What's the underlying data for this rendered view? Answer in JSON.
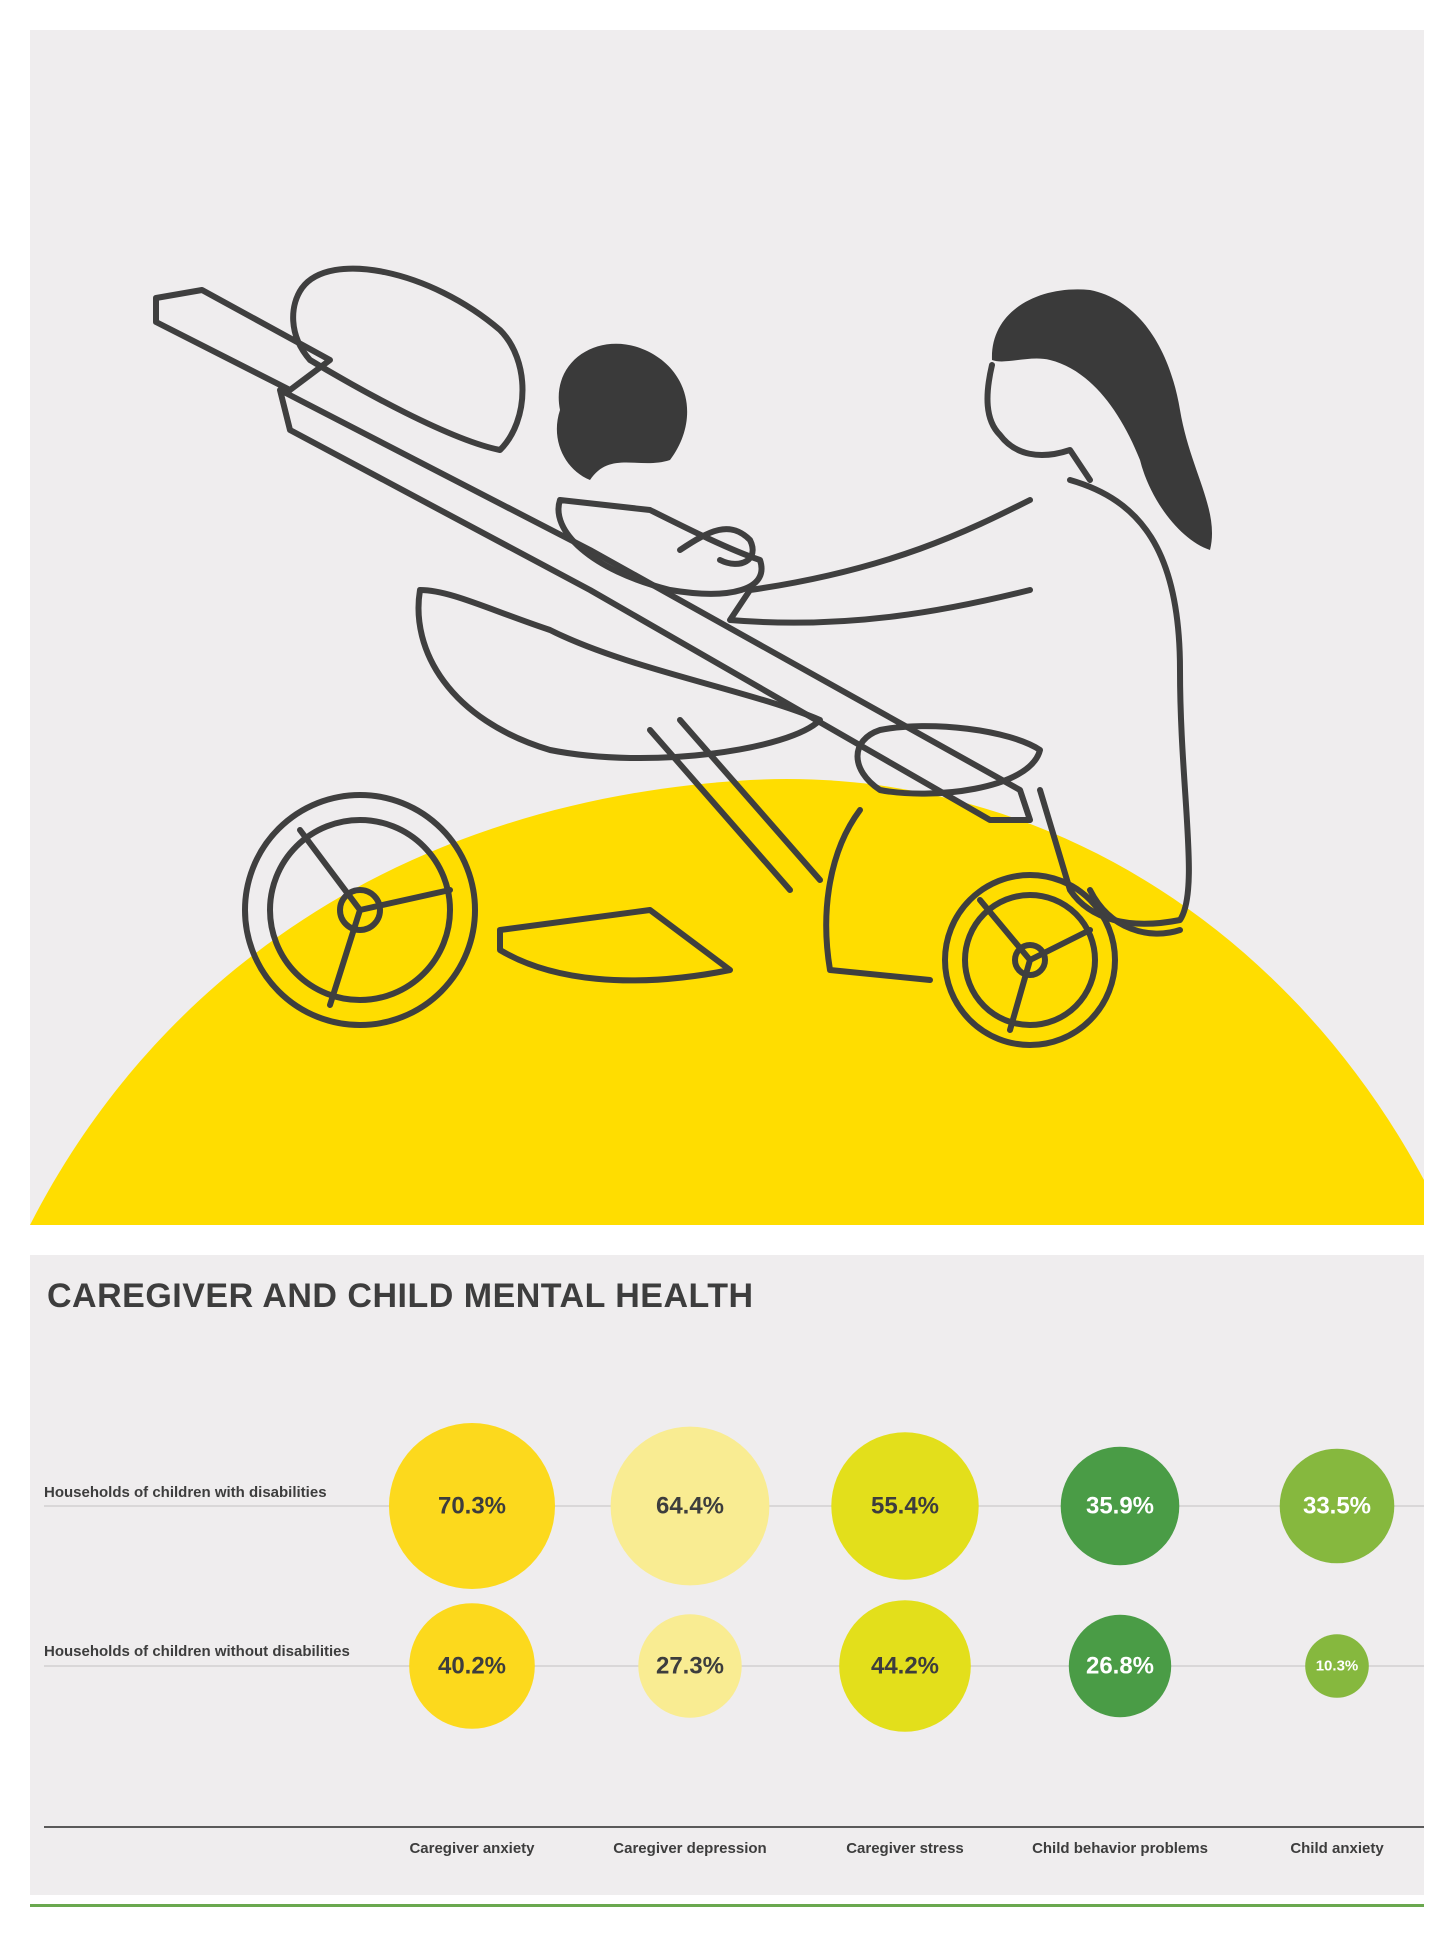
{
  "illustration": {
    "colors": {
      "background": "#efedee",
      "sun": "#ffdd00",
      "line": "#3f3f3f",
      "hair": "#3a3a3a"
    }
  },
  "chart_data": {
    "type": "bubble",
    "title": "CAREGIVER AND CHILD MENTAL HEALTH",
    "categories": [
      "Caregiver anxiety",
      "Caregiver depression",
      "Caregiver stress",
      "Child behavior problems",
      "Child anxiety"
    ],
    "category_colors": [
      "#fcd91d",
      "#f9ec92",
      "#e3df1b",
      "#4a9c46",
      "#86b83e"
    ],
    "category_text_colors": [
      "#3d3d3d",
      "#3d3d3d",
      "#3d3d3d",
      "#ffffff",
      "#ffffff"
    ],
    "series": [
      {
        "name": "Households of children with disabilities",
        "values": [
          70.3,
          64.4,
          55.4,
          35.9,
          33.5
        ],
        "labels": [
          "70.3%",
          "64.4%",
          "55.4%",
          "35.9%",
          "33.5%"
        ]
      },
      {
        "name": "Households of children without disabilities",
        "values": [
          40.2,
          27.3,
          44.2,
          26.8,
          10.3
        ],
        "labels": [
          "40.2%",
          "27.3%",
          "44.2%",
          "26.8%",
          "10.3%"
        ]
      }
    ],
    "value_unit": "%",
    "grid": false,
    "legend": "none"
  }
}
